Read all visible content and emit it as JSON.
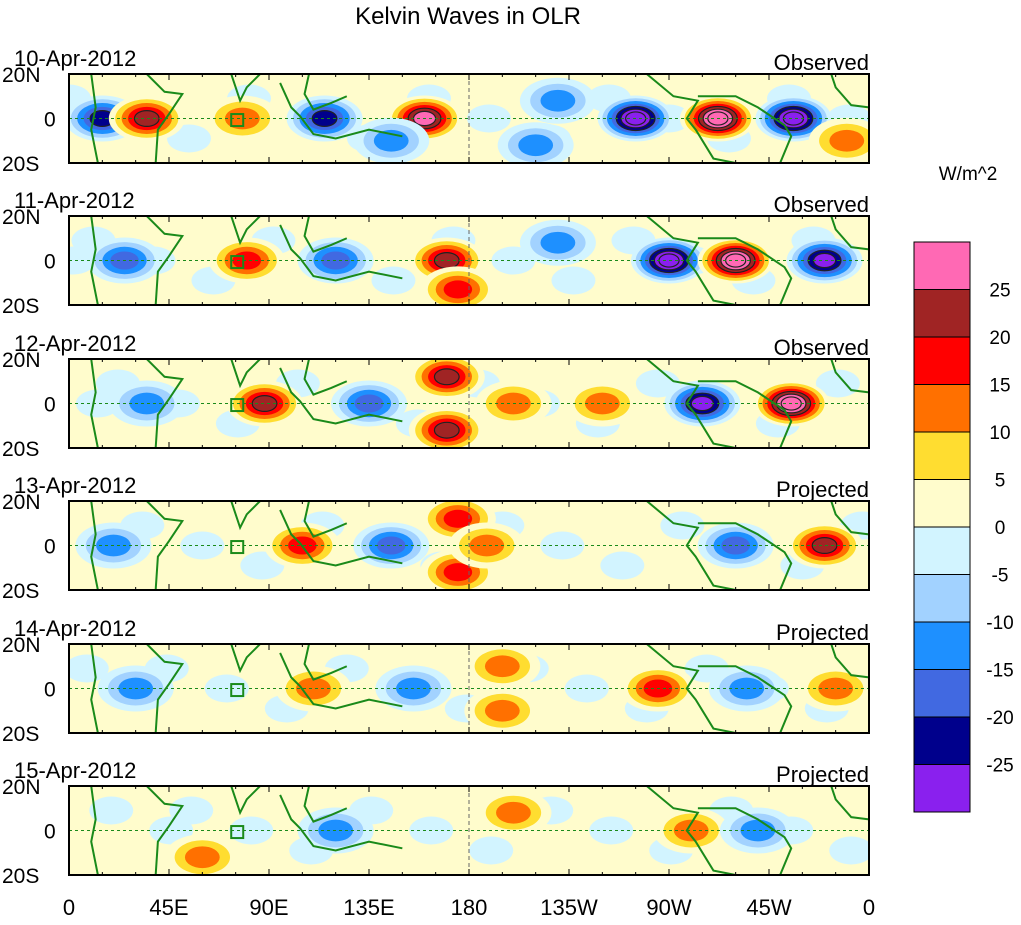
{
  "chart_data": {
    "type": "heatmap",
    "title": "Kelvin Waves in OLR",
    "units_label": "W/m^2",
    "x_ticks": [
      "0",
      "45E",
      "90E",
      "135E",
      "180",
      "135W",
      "90W",
      "45W",
      "0"
    ],
    "x_tick_values": [
      0,
      45,
      90,
      135,
      180,
      225,
      270,
      315,
      360
    ],
    "y_ticks": [
      "20N",
      "0",
      "20S"
    ],
    "y_tick_values": [
      20,
      0,
      -20
    ],
    "xlim": [
      0,
      360
    ],
    "ylim": [
      -20,
      20
    ],
    "levels": [
      "25",
      "20",
      "15",
      "10",
      "5",
      "0",
      "-5",
      "-10",
      "-15",
      "-20",
      "-25"
    ],
    "level_values": [
      25,
      20,
      15,
      10,
      5,
      0,
      -5,
      -10,
      -15,
      -20,
      -25
    ],
    "colors": [
      "#ff69b4",
      "#a02424",
      "#ff0000",
      "#ff7000",
      "#ffdd30",
      "#fffccc",
      "#d2f4ff",
      "#a2d2ff",
      "#1e90ff",
      "#4169e1",
      "#00008c",
      "#8a20ee"
    ],
    "panels": [
      {
        "date": "10-Apr-2012",
        "kind": "Observed",
        "features": [
          {
            "lon": 15,
            "lat": 0,
            "value": -20
          },
          {
            "lon": 35,
            "lat": 0,
            "value": 18
          },
          {
            "lon": 78,
            "lat": 0,
            "value": 8
          },
          {
            "lon": 115,
            "lat": 0,
            "value": -18
          },
          {
            "lon": 160,
            "lat": 0,
            "value": 24
          },
          {
            "lon": 145,
            "lat": -10,
            "value": -8
          },
          {
            "lon": 210,
            "lat": -12,
            "value": -10
          },
          {
            "lon": 220,
            "lat": 8,
            "value": -8
          },
          {
            "lon": 255,
            "lat": 0,
            "value": -27
          },
          {
            "lon": 292,
            "lat": 0,
            "value": 28
          },
          {
            "lon": 326,
            "lat": 0,
            "value": -27
          },
          {
            "lon": 350,
            "lat": -10,
            "value": 8
          }
        ]
      },
      {
        "date": "11-Apr-2012",
        "kind": "Observed",
        "features": [
          {
            "lon": 25,
            "lat": 0,
            "value": -12
          },
          {
            "lon": 80,
            "lat": 0,
            "value": 14
          },
          {
            "lon": 120,
            "lat": 0,
            "value": -12
          },
          {
            "lon": 170,
            "lat": 0,
            "value": 18
          },
          {
            "lon": 175,
            "lat": -13,
            "value": 14
          },
          {
            "lon": 220,
            "lat": 8,
            "value": -10
          },
          {
            "lon": 270,
            "lat": 0,
            "value": -27
          },
          {
            "lon": 300,
            "lat": 0,
            "value": 28
          },
          {
            "lon": 340,
            "lat": 0,
            "value": -25
          }
        ]
      },
      {
        "date": "12-Apr-2012",
        "kind": "Observed",
        "features": [
          {
            "lon": 35,
            "lat": 0,
            "value": -10
          },
          {
            "lon": 88,
            "lat": 0,
            "value": 20
          },
          {
            "lon": 135,
            "lat": 0,
            "value": -12
          },
          {
            "lon": 170,
            "lat": 12,
            "value": 20
          },
          {
            "lon": 170,
            "lat": -12,
            "value": 19
          },
          {
            "lon": 200,
            "lat": 0,
            "value": 6
          },
          {
            "lon": 240,
            "lat": 0,
            "value": 6
          },
          {
            "lon": 285,
            "lat": 0,
            "value": -24
          },
          {
            "lon": 325,
            "lat": 0,
            "value": 28
          }
        ]
      },
      {
        "date": "13-Apr-2012",
        "kind": "Projected",
        "features": [
          {
            "lon": 20,
            "lat": 0,
            "value": -8
          },
          {
            "lon": 105,
            "lat": 0,
            "value": 13
          },
          {
            "lon": 145,
            "lat": 0,
            "value": -12
          },
          {
            "lon": 175,
            "lat": 12,
            "value": 15
          },
          {
            "lon": 175,
            "lat": -12,
            "value": 15
          },
          {
            "lon": 188,
            "lat": 0,
            "value": 10
          },
          {
            "lon": 300,
            "lat": 0,
            "value": -12
          },
          {
            "lon": 340,
            "lat": 0,
            "value": 20
          }
        ]
      },
      {
        "date": "14-Apr-2012",
        "kind": "Projected",
        "features": [
          {
            "lon": 30,
            "lat": 0,
            "value": -6
          },
          {
            "lon": 110,
            "lat": 0,
            "value": 7
          },
          {
            "lon": 155,
            "lat": 0,
            "value": -7
          },
          {
            "lon": 195,
            "lat": 10,
            "value": 7
          },
          {
            "lon": 195,
            "lat": -10,
            "value": 7
          },
          {
            "lon": 265,
            "lat": 0,
            "value": 12
          },
          {
            "lon": 305,
            "lat": 0,
            "value": -10
          },
          {
            "lon": 345,
            "lat": 0,
            "value": 7
          }
        ]
      },
      {
        "date": "15-Apr-2012",
        "kind": "Projected",
        "features": [
          {
            "lon": 60,
            "lat": -12,
            "value": 7
          },
          {
            "lon": 120,
            "lat": 0,
            "value": -7
          },
          {
            "lon": 200,
            "lat": 8,
            "value": 6
          },
          {
            "lon": 280,
            "lat": 0,
            "value": 10
          },
          {
            "lon": 310,
            "lat": 0,
            "value": -6
          }
        ]
      }
    ]
  }
}
